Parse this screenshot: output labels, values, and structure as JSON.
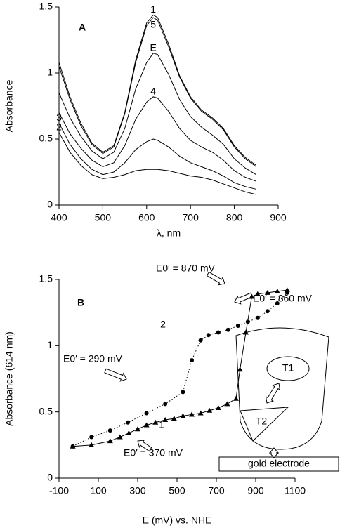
{
  "chart_data": [
    {
      "type": "line",
      "panel_label": "A",
      "x_label": "λ, nm",
      "y_label": "Absorbance",
      "x": [
        400,
        425,
        450,
        475,
        500,
        525,
        550,
        575,
        600,
        615,
        625,
        650,
        675,
        700,
        725,
        750,
        775,
        800,
        825,
        850
      ],
      "series": [
        {
          "name": "1",
          "color": "#000000",
          "values": [
            1.08,
            0.82,
            0.62,
            0.47,
            0.4,
            0.45,
            0.7,
            1.1,
            1.38,
            1.44,
            1.42,
            1.22,
            0.98,
            0.82,
            0.72,
            0.66,
            0.58,
            0.45,
            0.36,
            0.3
          ]
        },
        {
          "name": "5",
          "color": "#000000",
          "values": [
            1.05,
            0.8,
            0.6,
            0.46,
            0.39,
            0.44,
            0.69,
            1.08,
            1.36,
            1.42,
            1.4,
            1.2,
            0.97,
            0.81,
            0.71,
            0.65,
            0.57,
            0.44,
            0.35,
            0.29
          ]
        },
        {
          "name": "E",
          "color": "#000000",
          "values": [
            0.85,
            0.66,
            0.52,
            0.41,
            0.35,
            0.4,
            0.58,
            0.88,
            1.08,
            1.15,
            1.14,
            0.99,
            0.8,
            0.67,
            0.59,
            0.53,
            0.46,
            0.35,
            0.28,
            0.23
          ]
        },
        {
          "name": "4",
          "color": "#000000",
          "values": [
            0.7,
            0.54,
            0.43,
            0.34,
            0.29,
            0.32,
            0.45,
            0.65,
            0.78,
            0.82,
            0.81,
            0.71,
            0.58,
            0.49,
            0.44,
            0.4,
            0.34,
            0.26,
            0.21,
            0.18
          ]
        },
        {
          "name": "3",
          "color": "#000000",
          "values": [
            0.62,
            0.46,
            0.35,
            0.27,
            0.23,
            0.25,
            0.32,
            0.42,
            0.48,
            0.5,
            0.49,
            0.44,
            0.37,
            0.32,
            0.29,
            0.26,
            0.22,
            0.17,
            0.14,
            0.12
          ]
        },
        {
          "name": "2",
          "color": "#000000",
          "values": [
            0.55,
            0.4,
            0.3,
            0.23,
            0.2,
            0.21,
            0.23,
            0.26,
            0.27,
            0.27,
            0.27,
            0.26,
            0.24,
            0.22,
            0.21,
            0.19,
            0.16,
            0.13,
            0.1,
            0.08
          ]
        }
      ],
      "xlim": [
        400,
        900
      ],
      "xticks": [
        400,
        500,
        600,
        700,
        800,
        900
      ],
      "ylim": [
        0,
        1.5
      ],
      "yticks": [
        0,
        0.5,
        1,
        1.5
      ],
      "grid": false
    },
    {
      "type": "line",
      "panel_label": "B",
      "x_label": "E (mV) vs. NHE",
      "y_label": "Absorbance (614 nm)",
      "series": [
        {
          "name": "1",
          "color": "#000000",
          "marker": "triangle",
          "line_style": "solid",
          "x": [
            -30,
            65,
            160,
            210,
            255,
            300,
            345,
            390,
            440,
            485,
            530,
            575,
            620,
            665,
            710,
            755,
            800,
            820,
            850,
            880,
            910,
            960,
            1010,
            1060
          ],
          "values": [
            0.24,
            0.25,
            0.28,
            0.31,
            0.34,
            0.37,
            0.4,
            0.42,
            0.44,
            0.45,
            0.47,
            0.48,
            0.49,
            0.51,
            0.53,
            0.56,
            0.6,
            0.82,
            1.1,
            1.37,
            1.39,
            1.4,
            1.41,
            1.42
          ]
        },
        {
          "name": "2",
          "color": "#000000",
          "marker": "circle",
          "line_style": "dotted",
          "x": [
            -30,
            65,
            160,
            250,
            345,
            440,
            530,
            575,
            620,
            660,
            710,
            760,
            810,
            860,
            910,
            960,
            1010,
            1060
          ],
          "values": [
            0.24,
            0.31,
            0.36,
            0.42,
            0.49,
            0.56,
            0.65,
            0.89,
            1.04,
            1.08,
            1.1,
            1.12,
            1.15,
            1.18,
            1.21,
            1.26,
            1.32,
            1.4
          ]
        }
      ],
      "annotations": [
        "E0′ = 870 mV",
        "E0′ = 860 mV",
        "E0′ = 290 mV",
        "E0′ = 370 mV"
      ],
      "inset_labels": [
        "T1",
        "T2",
        "gold electrode"
      ],
      "xlim": [
        -100,
        1100
      ],
      "xticks": [
        -100,
        100,
        300,
        500,
        700,
        900,
        1100
      ],
      "ylim": [
        0,
        1.5
      ],
      "yticks": [
        0,
        0.5,
        1,
        1.5
      ],
      "grid": false
    }
  ]
}
